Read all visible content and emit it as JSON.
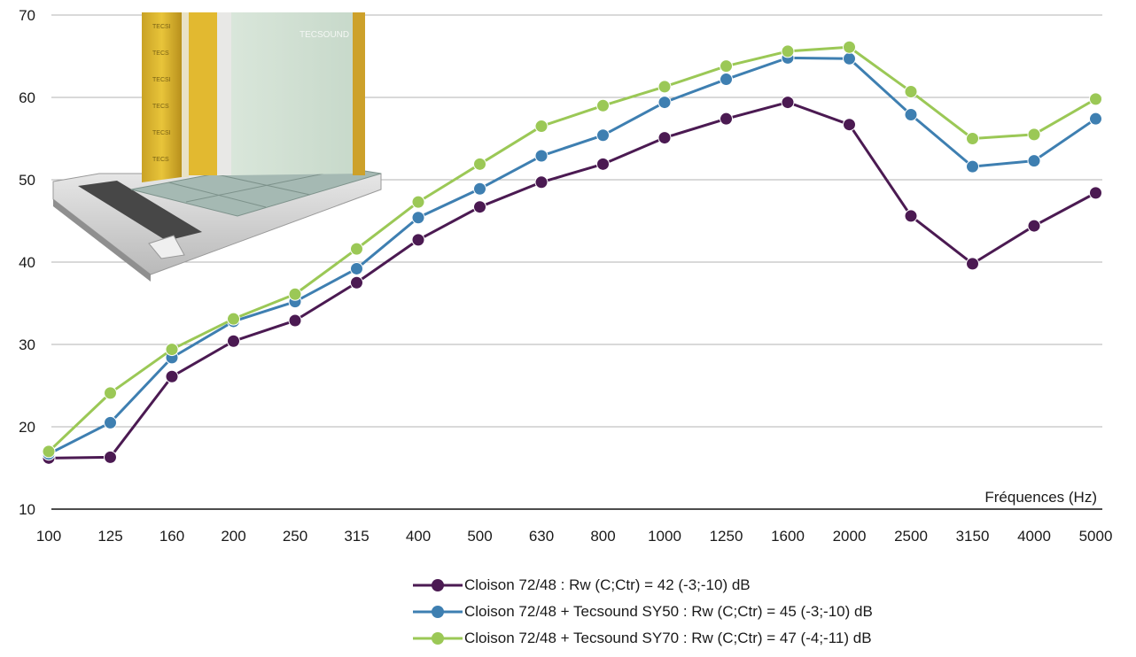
{
  "chart_data": {
    "type": "line",
    "categories": [
      "100",
      "125",
      "160",
      "200",
      "250",
      "315",
      "400",
      "500",
      "630",
      "800",
      "1000",
      "1250",
      "1600",
      "2000",
      "2500",
      "3150",
      "4000",
      "5000"
    ],
    "xlabel": "Fréquences (Hz)",
    "ylabel": "",
    "ylim": [
      10,
      70
    ],
    "yticks": [
      10,
      20,
      30,
      40,
      50,
      60,
      70
    ],
    "grid": true,
    "legend_position": "bottom",
    "series": [
      {
        "name": "Cloison 72/48 : Rw (C;Ctr) = 42 (-3;-10) dB",
        "color": "#4b1a52",
        "values": [
          16.2,
          16.3,
          26.1,
          30.4,
          32.9,
          37.5,
          42.7,
          46.7,
          49.7,
          51.9,
          55.1,
          57.4,
          59.4,
          56.7,
          45.6,
          39.8,
          44.4,
          48.4
        ]
      },
      {
        "name": "Cloison 72/48 + Tecsound SY50 : Rw (C;Ctr) = 45 (-3;-10) dB",
        "color": "#3e7fb1",
        "values": [
          16.7,
          20.5,
          28.4,
          32.8,
          35.2,
          39.2,
          45.4,
          48.9,
          52.9,
          55.4,
          59.4,
          62.2,
          64.8,
          64.7,
          57.9,
          51.6,
          52.3,
          57.4
        ]
      },
      {
        "name": "Cloison 72/48 + Tecsound SY70 : Rw (C;Ctr) = 47 (-4;-11) dB",
        "color": "#9bc856",
        "values": [
          17.0,
          24.1,
          29.4,
          33.1,
          36.1,
          41.6,
          47.3,
          51.9,
          56.5,
          59.0,
          61.3,
          63.8,
          65.6,
          66.1,
          60.7,
          55.0,
          55.5,
          59.8
        ]
      }
    ]
  },
  "illustration": {
    "brand": "TECSOUND",
    "panel_text": "TECSOUND"
  }
}
